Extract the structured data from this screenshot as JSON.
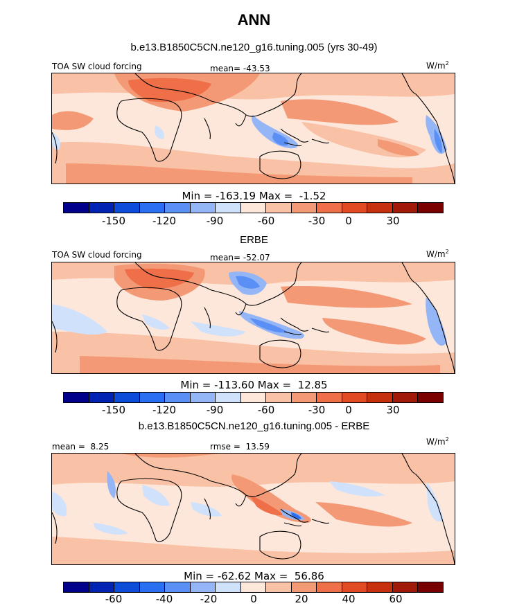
{
  "figure": {
    "title": "ANN",
    "colors": {
      "palette": [
        "#00008b",
        "#0023b3",
        "#0d4bd9",
        "#2a6ef2",
        "#5a90f5",
        "#94b6f7",
        "#d0e2fb",
        "#fde6da",
        "#f9c1a5",
        "#f49975",
        "#ee6f48",
        "#e24a24",
        "#c7300f",
        "#a11908",
        "#7a0000"
      ],
      "land_outline": "#000000",
      "ocean_base": "#fde6da"
    }
  },
  "panels": [
    {
      "title": "b.e13.B1850C5CN.ne120_g16.tuning.005 (yrs 30-49)",
      "left_label": "TOA SW cloud forcing",
      "center_label": "mean= -43.53",
      "units": "W/m",
      "units_sup": "2",
      "minmax": "Min = -163.19 Max =  -1.52",
      "colorbar_ticks": [
        "-150",
        "-120",
        "-90",
        "-60",
        "-30",
        "0",
        "30"
      ]
    },
    {
      "title": "ERBE",
      "left_label": "TOA SW cloud forcing",
      "center_label": "mean= -52.07",
      "units": "W/m",
      "units_sup": "2",
      "minmax": "Min = -113.60 Max =  12.85",
      "colorbar_ticks": [
        "-150",
        "-120",
        "-90",
        "-60",
        "-30",
        "0",
        "30"
      ]
    },
    {
      "title": "b.e13.B1850C5CN.ne120_g16.tuning.005 - ERBE",
      "left_label": "mean =  8.25",
      "center_label": "rmse =  13.59",
      "units": "W/m",
      "units_sup": "2",
      "minmax": "Min = -62.62 Max =  56.86",
      "colorbar_ticks": [
        "-60",
        "-40",
        "-20",
        "0",
        "20",
        "40",
        "60"
      ]
    }
  ]
}
